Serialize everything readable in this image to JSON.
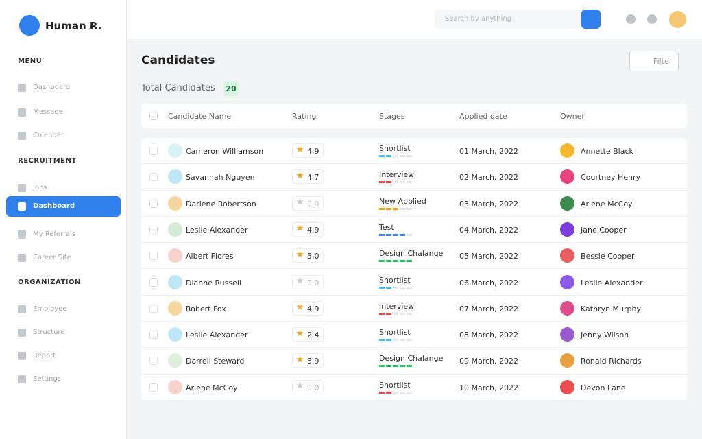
{
  "brand": "Human R.",
  "search_placeholder": "Search by anything",
  "sidebar": {
    "sections": [
      {
        "title": "MENU",
        "items": [
          "Dashboard",
          "Message",
          "Calendar"
        ]
      },
      {
        "title": "RECRUITMENT",
        "items": [
          "Jobs",
          "Dashboard",
          "My Referrals",
          "Career Site"
        ]
      },
      {
        "title": "ORGANIZATION",
        "items": [
          "Employee",
          "Structure",
          "Report",
          "Settings"
        ]
      }
    ]
  },
  "page_title": "Candidates",
  "filter": "Filter",
  "total_label": "Total Candidates",
  "total": 20,
  "table": {
    "columns": [
      "Candidate Name",
      "Rating",
      "Stages",
      "Applied date",
      "Owner"
    ],
    "rows": [
      {
        "name": "Cameron Williamson",
        "rating": "4.9",
        "stage": "Shortlist",
        "progress": 2,
        "color": "#38bdf8",
        "date": "01 March, 2022",
        "owner": "Annette Black"
      },
      {
        "name": "Savannah Nguyen",
        "rating": "4.7",
        "stage": "Interview",
        "progress": 2,
        "color": "#ef4444",
        "date": "02 March, 2022",
        "owner": "Courtney Henry"
      },
      {
        "name": "Darlene Robertson",
        "rating": "0.0",
        "stage": "New Applied",
        "progress": 3,
        "color": "#f59e0b",
        "date": "03 March, 2022",
        "owner": "Arlene McCoy"
      },
      {
        "name": "Leslie Alexander",
        "rating": "4.9",
        "stage": "Test",
        "progress": 4,
        "color": "#3b82f6",
        "date": "04 March, 2022",
        "owner": "Jane Cooper"
      },
      {
        "name": "Albert Flores",
        "rating": "5.0",
        "stage": "Design Chalange",
        "progress": 5,
        "color": "#22c55e",
        "date": "05 March, 2022",
        "owner": "Bessie Cooper"
      },
      {
        "name": "Dianne Russell",
        "rating": "0.0",
        "stage": "Shortlist",
        "progress": 2,
        "color": "#38bdf8",
        "date": "06 March, 2022",
        "owner": "Leslie Alexander"
      },
      {
        "name": "Robert Fox",
        "rating": "4.9",
        "stage": "Interview",
        "progress": 2,
        "color": "#ef4444",
        "date": "07 March, 2022",
        "owner": "Kathryn Murphy"
      },
      {
        "name": "Leslie Alexander",
        "rating": "2.4",
        "stage": "Shortlist",
        "progress": 2,
        "color": "#38bdf8",
        "date": "08 March, 2022",
        "owner": "Jenny Wilson"
      },
      {
        "name": "Darrell Steward",
        "rating": "3.9",
        "stage": "Design Chalange",
        "progress": 5,
        "color": "#22c55e",
        "date": "09 March, 2022",
        "owner": "Ronald Richards"
      },
      {
        "name": "Arlene McCoy",
        "rating": "0.0",
        "stage": "Shortlist",
        "progress": 2,
        "color": "#ef4444",
        "date": "10 March, 2022",
        "owner": "Devon Lane"
      }
    ]
  }
}
